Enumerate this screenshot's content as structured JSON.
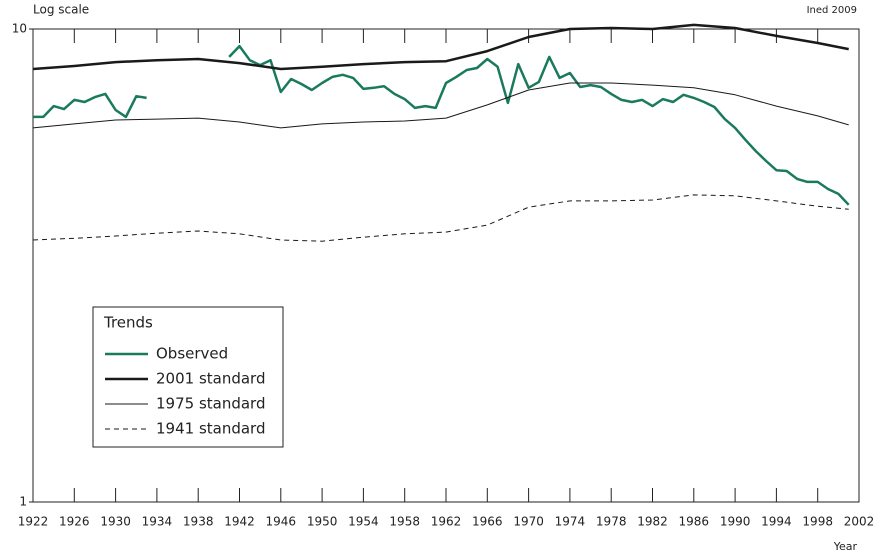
{
  "chart_data": {
    "type": "line",
    "y_label": "Log scale",
    "x_label": "Year",
    "source": "Ined 2009",
    "log_y": true,
    "ylim": [
      1,
      10
    ],
    "yticks": [
      1,
      10
    ],
    "xlim": [
      1922,
      2002
    ],
    "xticks": [
      1922,
      1926,
      1930,
      1934,
      1938,
      1942,
      1946,
      1950,
      1954,
      1958,
      1962,
      1966,
      1970,
      1974,
      1978,
      1982,
      1986,
      1990,
      1994,
      1998,
      2002
    ],
    "legend_title": "Trends",
    "legend": "lower-left",
    "series": [
      {
        "name": "Observed",
        "color": "#1a7a5e",
        "line_width": 2.5,
        "dash": false,
        "x": [
          1922,
          1923,
          1924,
          1925,
          1926,
          1927,
          1928,
          1929,
          1930,
          1931,
          1932,
          1933,
          1934,
          1935,
          1936,
          1937,
          1938,
          1939,
          1940,
          1941,
          1942,
          1943,
          1944,
          1945,
          1946,
          1947,
          1948,
          1949,
          1950,
          1951,
          1952,
          1953,
          1954,
          1955,
          1956,
          1957,
          1958,
          1959,
          1960,
          1961,
          1962,
          1963,
          1964,
          1965,
          1966,
          1967,
          1968,
          1969,
          1970,
          1971,
          1972,
          1973,
          1974,
          1975,
          1976,
          1977,
          1978,
          1979,
          1980,
          1981,
          1982,
          1983,
          1984,
          1985,
          1986,
          1987,
          1988,
          1989,
          1990,
          1991,
          1992,
          1993,
          1994,
          1995,
          1996,
          1997,
          1998,
          1999,
          2000,
          2001
        ],
        "values": [
          6.52,
          6.52,
          6.87,
          6.77,
          7.08,
          7.01,
          7.18,
          7.29,
          6.74,
          6.52,
          7.21,
          7.15,
          null,
          null,
          null,
          null,
          null,
          null,
          null,
          8.73,
          9.2,
          8.59,
          8.39,
          8.59,
          7.36,
          7.84,
          7.65,
          7.43,
          7.69,
          7.92,
          8.0,
          7.88,
          7.47,
          7.51,
          7.57,
          7.29,
          7.11,
          6.81,
          6.87,
          6.81,
          7.69,
          7.92,
          8.19,
          8.27,
          8.64,
          8.32,
          6.98,
          8.43,
          7.51,
          7.73,
          8.73,
          7.88,
          8.07,
          7.54,
          7.61,
          7.54,
          7.29,
          7.08,
          7.01,
          7.08,
          6.87,
          7.11,
          7.01,
          7.26,
          7.15,
          7.01,
          6.84,
          6.45,
          6.18,
          5.83,
          5.52,
          5.26,
          5.03,
          5.01,
          4.82,
          4.75,
          4.75,
          4.59,
          4.48,
          4.25
        ]
      },
      {
        "name": "2001 standard",
        "color": "#1a1a1a",
        "line_width": 2.5,
        "dash": false,
        "x": [
          1922,
          1926,
          1930,
          1934,
          1938,
          1942,
          1946,
          1950,
          1954,
          1958,
          1962,
          1966,
          1970,
          1974,
          1978,
          1982,
          1986,
          1990,
          1994,
          1998,
          2001
        ],
        "values": [
          8.23,
          8.35,
          8.51,
          8.59,
          8.64,
          8.47,
          8.23,
          8.32,
          8.43,
          8.51,
          8.55,
          8.98,
          9.62,
          10.0,
          10.05,
          10.0,
          10.2,
          10.05,
          9.67,
          9.34,
          9.07
        ]
      },
      {
        "name": "1975 standard",
        "color": "#1a1a1a",
        "line_width": 1,
        "dash": false,
        "x": [
          1922,
          1926,
          1930,
          1934,
          1938,
          1942,
          1946,
          1950,
          1954,
          1958,
          1962,
          1966,
          1970,
          1974,
          1978,
          1982,
          1986,
          1990,
          1994,
          1998,
          2001
        ],
        "values": [
          6.18,
          6.3,
          6.42,
          6.45,
          6.48,
          6.36,
          6.18,
          6.3,
          6.36,
          6.39,
          6.48,
          6.91,
          7.43,
          7.69,
          7.69,
          7.61,
          7.51,
          7.26,
          6.87,
          6.55,
          6.27
        ]
      },
      {
        "name": "1941 standard",
        "color": "#1a1a1a",
        "line_width": 1,
        "dash": true,
        "x": [
          1922,
          1926,
          1930,
          1934,
          1938,
          1942,
          1946,
          1950,
          1954,
          1958,
          1962,
          1966,
          1970,
          1974,
          1978,
          1982,
          1986,
          1990,
          1994,
          1998,
          2001
        ],
        "values": [
          3.58,
          3.61,
          3.65,
          3.7,
          3.74,
          3.69,
          3.58,
          3.56,
          3.63,
          3.69,
          3.72,
          3.85,
          4.2,
          4.33,
          4.33,
          4.35,
          4.46,
          4.44,
          4.33,
          4.22,
          4.16
        ]
      }
    ]
  }
}
